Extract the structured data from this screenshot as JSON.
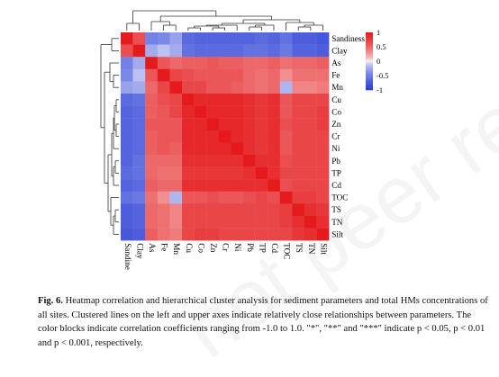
{
  "chart_data": {
    "type": "heatmap",
    "title": "",
    "row_labels": [
      "Sandiness",
      "Clay",
      "As",
      "Fe",
      "Mn",
      "Cu",
      "Co",
      "Zn",
      "Cr",
      "Ni",
      "Pb",
      "TP",
      "Cd",
      "TOC",
      "TS",
      "TN",
      "Silt"
    ],
    "col_labels": [
      "Sandiness",
      "Clay",
      "As",
      "Fe",
      "Mn",
      "Cu",
      "Co",
      "Zn",
      "Cr",
      "Ni",
      "Pb",
      "TP",
      "Cd",
      "TOC",
      "TS",
      "TN",
      "Silt"
    ],
    "matrix": [
      [
        1.0,
        0.65,
        -0.5,
        -0.45,
        -0.3,
        -0.65,
        -0.7,
        -0.7,
        -0.7,
        -0.7,
        -0.7,
        -0.65,
        -0.7,
        -0.6,
        -0.75,
        -0.75,
        -0.8
      ],
      [
        0.65,
        1.0,
        -0.25,
        -0.15,
        -0.25,
        -0.6,
        -0.65,
        -0.65,
        -0.65,
        -0.65,
        -0.6,
        -0.6,
        -0.65,
        -0.55,
        -0.7,
        -0.7,
        -0.75
      ],
      [
        -0.5,
        -0.25,
        1.0,
        0.6,
        0.5,
        0.55,
        0.55,
        0.6,
        0.55,
        0.55,
        0.5,
        0.5,
        0.55,
        0.45,
        0.5,
        0.5,
        0.55
      ],
      [
        -0.45,
        -0.15,
        0.6,
        1.0,
        0.7,
        0.65,
        0.6,
        0.6,
        0.6,
        0.6,
        0.5,
        0.45,
        0.5,
        0.3,
        0.45,
        0.45,
        0.45
      ],
      [
        -0.3,
        -0.25,
        0.5,
        0.7,
        1.0,
        0.7,
        0.7,
        0.6,
        0.6,
        0.55,
        0.5,
        0.45,
        0.5,
        -0.2,
        0.35,
        0.35,
        0.4
      ],
      [
        -0.65,
        -0.6,
        0.55,
        0.65,
        0.7,
        1.0,
        0.9,
        0.9,
        0.9,
        0.9,
        0.85,
        0.8,
        0.85,
        0.6,
        0.7,
        0.7,
        0.7
      ],
      [
        -0.7,
        -0.65,
        0.55,
        0.6,
        0.7,
        0.9,
        1.0,
        0.9,
        0.9,
        0.9,
        0.85,
        0.8,
        0.85,
        0.6,
        0.7,
        0.7,
        0.75
      ],
      [
        -0.7,
        -0.65,
        0.6,
        0.6,
        0.6,
        0.9,
        0.9,
        1.0,
        0.9,
        0.9,
        0.85,
        0.8,
        0.85,
        0.65,
        0.7,
        0.7,
        0.75
      ],
      [
        -0.7,
        -0.65,
        0.55,
        0.6,
        0.6,
        0.9,
        0.9,
        0.9,
        1.0,
        0.9,
        0.85,
        0.8,
        0.85,
        0.6,
        0.7,
        0.7,
        0.7
      ],
      [
        -0.7,
        -0.65,
        0.55,
        0.6,
        0.55,
        0.9,
        0.9,
        0.9,
        0.9,
        1.0,
        0.85,
        0.8,
        0.85,
        0.6,
        0.7,
        0.7,
        0.7
      ],
      [
        -0.7,
        -0.6,
        0.5,
        0.5,
        0.5,
        0.85,
        0.85,
        0.85,
        0.85,
        0.85,
        1.0,
        0.85,
        0.85,
        0.65,
        0.7,
        0.7,
        0.7
      ],
      [
        -0.65,
        -0.6,
        0.5,
        0.45,
        0.45,
        0.8,
        0.8,
        0.8,
        0.8,
        0.8,
        0.85,
        1.0,
        0.85,
        0.7,
        0.7,
        0.7,
        0.7
      ],
      [
        -0.7,
        -0.65,
        0.55,
        0.5,
        0.5,
        0.85,
        0.85,
        0.85,
        0.85,
        0.85,
        0.85,
        0.85,
        1.0,
        0.65,
        0.7,
        0.7,
        0.7
      ],
      [
        -0.6,
        -0.55,
        0.45,
        0.3,
        -0.2,
        0.6,
        0.6,
        0.65,
        0.6,
        0.6,
        0.65,
        0.7,
        0.65,
        1.0,
        0.75,
        0.75,
        0.7
      ],
      [
        -0.75,
        -0.7,
        0.5,
        0.45,
        0.35,
        0.7,
        0.7,
        0.7,
        0.7,
        0.7,
        0.7,
        0.7,
        0.7,
        0.75,
        1.0,
        0.85,
        0.8
      ],
      [
        -0.75,
        -0.7,
        0.5,
        0.45,
        0.35,
        0.7,
        0.7,
        0.7,
        0.7,
        0.7,
        0.7,
        0.7,
        0.7,
        0.75,
        0.85,
        1.0,
        0.85
      ],
      [
        -0.8,
        -0.75,
        0.55,
        0.45,
        0.4,
        0.7,
        0.75,
        0.75,
        0.7,
        0.7,
        0.7,
        0.7,
        0.7,
        0.7,
        0.8,
        0.85,
        1.0
      ]
    ],
    "color_scale": {
      "min": -1,
      "max": 1,
      "low": "#2b3fd6",
      "mid": "#ffffff",
      "high": "#e41a1c"
    },
    "legend_ticks": [
      "1",
      "0.5",
      "0",
      "-0.5",
      "-1"
    ],
    "legend_ticks_values": [
      1,
      0.5,
      0,
      -0.5,
      -1
    ],
    "dendrograms": [
      "left",
      "top"
    ]
  },
  "caption": {
    "label": "Fig. 6.",
    "text": " Heatmap correlation and hierarchical cluster analysis for sediment parameters and total HMs concentrations of all sites. Clustered lines on the left and upper axes indicate relatively close relationships between parameters. The color blocks indicate correlation coefficients ranging from -1.0 to 1.0. \"*\", \"**\" and \"***\" indicate p < 0.05, p < 0.01 and p < 0.001, respectively."
  },
  "watermark": "not peer reviewed"
}
